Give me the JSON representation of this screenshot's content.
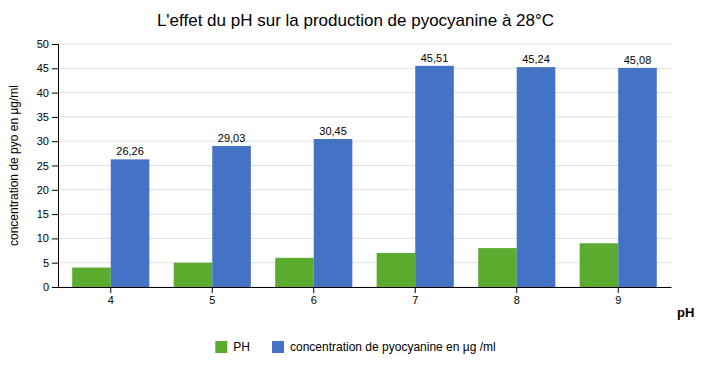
{
  "chart_data": {
    "type": "bar",
    "title": "L'effet du pH sur la production de pyocyanine à 28°C",
    "xlabel": "pH",
    "ylabel": "concentration de pyo en µg/ml",
    "categories": [
      "4",
      "5",
      "6",
      "7",
      "8",
      "9"
    ],
    "series": [
      {
        "name": "PH",
        "color": "#5AAB2E",
        "values": [
          4,
          5,
          6,
          7,
          8,
          9
        ]
      },
      {
        "name": "concentration de pyocyanine en µg /ml",
        "color": "#4472C4",
        "values": [
          26.26,
          29.03,
          30.45,
          45.51,
          45.24,
          45.08
        ],
        "value_labels": [
          "26,26",
          "29,03",
          "30,45",
          "45,51",
          "45,24",
          "45,08"
        ]
      }
    ],
    "ylim": [
      0,
      50
    ],
    "yticks": [
      0,
      5,
      10,
      15,
      20,
      25,
      30,
      35,
      40,
      45,
      50
    ],
    "grid": true,
    "legend": "bottom",
    "data_labels": true
  }
}
